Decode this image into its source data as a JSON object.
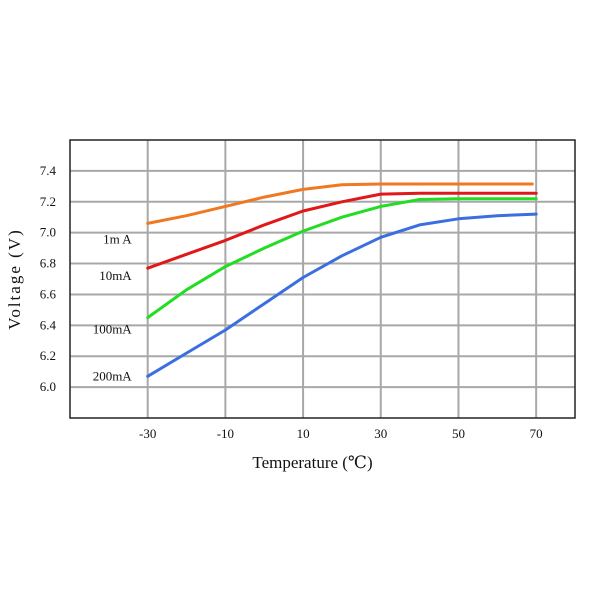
{
  "chart_data": {
    "type": "line",
    "xlabel": "Temperature (℃)",
    "ylabel": "Voltage (V)",
    "xlim": [
      -50,
      80
    ],
    "ylim": [
      5.8,
      7.6
    ],
    "x_ticks": [
      "-30",
      "-10",
      "10",
      "30",
      "50",
      "70"
    ],
    "y_ticks": [
      "6.0",
      "6.2",
      "6.4",
      "6.6",
      "6.8",
      "7.0",
      "7.2",
      "7.4"
    ],
    "grid": true,
    "series": [
      {
        "name": "1m A",
        "color": "#f07820",
        "x": [
          -30,
          -20,
          -10,
          0,
          10,
          20,
          30,
          40,
          50,
          60,
          69
        ],
        "y": [
          7.06,
          7.11,
          7.17,
          7.23,
          7.28,
          7.31,
          7.315,
          7.315,
          7.315,
          7.315,
          7.315
        ]
      },
      {
        "name": "10mA",
        "color": "#e01818",
        "x": [
          -30,
          -20,
          -10,
          0,
          10,
          20,
          30,
          40,
          50,
          60,
          70
        ],
        "y": [
          6.77,
          6.86,
          6.95,
          7.05,
          7.14,
          7.2,
          7.25,
          7.255,
          7.255,
          7.255,
          7.255
        ]
      },
      {
        "name": "100mA",
        "color": "#22dd22",
        "x": [
          -30,
          -20,
          -10,
          0,
          10,
          20,
          30,
          40,
          50,
          60,
          70
        ],
        "y": [
          6.45,
          6.63,
          6.78,
          6.9,
          7.01,
          7.1,
          7.17,
          7.215,
          7.22,
          7.22,
          7.22
        ]
      },
      {
        "name": "200mA",
        "color": "#3b6fe0",
        "x": [
          -30,
          -20,
          -10,
          0,
          10,
          20,
          30,
          40,
          50,
          60,
          70
        ],
        "y": [
          6.07,
          6.22,
          6.37,
          6.54,
          6.71,
          6.85,
          6.97,
          7.05,
          7.09,
          7.11,
          7.12
        ]
      }
    ]
  }
}
